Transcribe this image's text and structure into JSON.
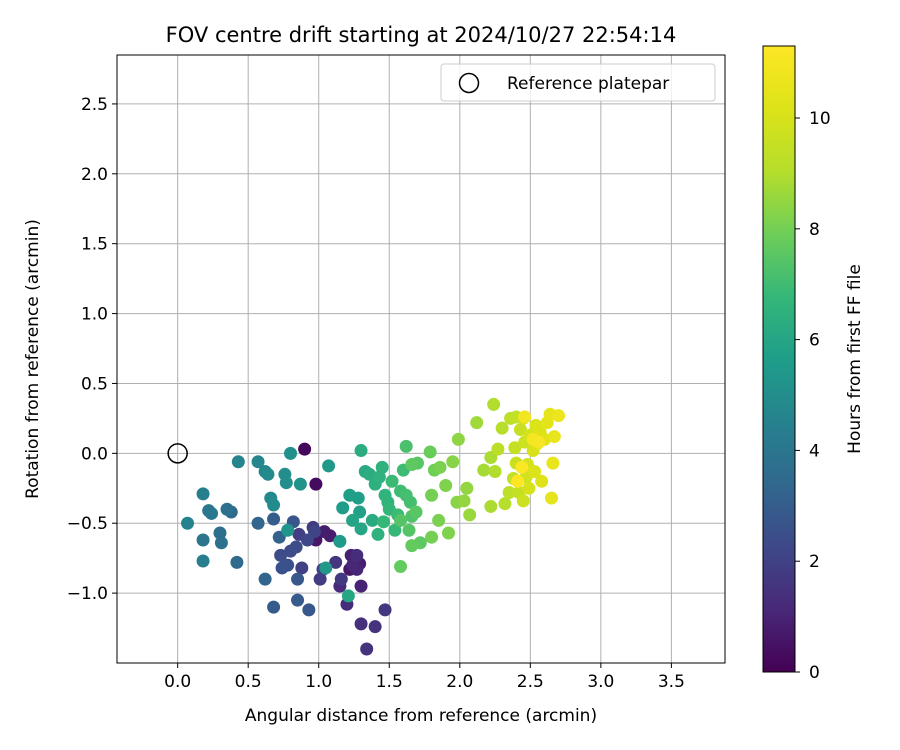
{
  "chart_data": {
    "type": "scatter",
    "title": "FOV centre drift starting at 2024/10/27 22:54:14",
    "xlabel": "Angular distance from reference (arcmin)",
    "ylabel": "Rotation from reference (arcmin)",
    "xlim": [
      -0.43,
      3.88
    ],
    "ylim": [
      -1.5,
      2.85
    ],
    "xticks": [
      0.0,
      0.5,
      1.0,
      1.5,
      2.0,
      2.5,
      3.0,
      3.5
    ],
    "xtick_labels": [
      "0.0",
      "0.5",
      "1.0",
      "1.5",
      "2.0",
      "2.5",
      "3.0",
      "3.5"
    ],
    "yticks": [
      -1.0,
      -0.5,
      0.0,
      0.5,
      1.0,
      1.5,
      2.0,
      2.5
    ],
    "ytick_labels": [
      "−1.0",
      "−0.5",
      "0.0",
      "0.5",
      "1.0",
      "1.5",
      "2.0",
      "2.5"
    ],
    "grid": true,
    "legend_position": "top-right",
    "legend_label": "Reference platepar",
    "reference_point": [
      0.0,
      0.0
    ],
    "colorbar": {
      "label": "Hours from first FF file",
      "min": 0,
      "max": 11.3,
      "ticks": [
        0,
        2,
        4,
        6,
        8,
        10
      ],
      "tick_labels": [
        "0",
        "2",
        "4",
        "6",
        "8",
        "10"
      ],
      "colormap": "viridis"
    },
    "points": [
      [
        0.9,
        0.03,
        0.2
      ],
      [
        0.98,
        -0.22,
        0.3
      ],
      [
        0.98,
        -0.62,
        0.6
      ],
      [
        1.22,
        -0.83,
        0.6
      ],
      [
        1.04,
        -0.56,
        0.8
      ],
      [
        1.08,
        -0.59,
        0.8
      ],
      [
        1.29,
        -0.79,
        0.8
      ],
      [
        1.23,
        -0.73,
        0.9
      ],
      [
        1.3,
        -0.95,
        1.0
      ],
      [
        1.27,
        -0.83,
        1.0
      ],
      [
        1.24,
        -0.8,
        1.1
      ],
      [
        1.15,
        -0.95,
        1.2
      ],
      [
        1.2,
        -1.08,
        1.3
      ],
      [
        1.27,
        -0.73,
        1.3
      ],
      [
        1.3,
        -1.22,
        1.4
      ],
      [
        1.34,
        -1.4,
        1.5
      ],
      [
        1.4,
        -1.24,
        1.5
      ],
      [
        1.47,
        -1.12,
        1.6
      ],
      [
        1.12,
        -0.78,
        1.6
      ],
      [
        1.16,
        -0.9,
        1.7
      ],
      [
        0.96,
        -0.53,
        1.7
      ],
      [
        1.01,
        -0.9,
        1.8
      ],
      [
        0.86,
        -0.58,
        1.9
      ],
      [
        0.88,
        -0.82,
        2.0
      ],
      [
        1.03,
        -0.83,
        2.0
      ],
      [
        0.97,
        -0.56,
        2.1
      ],
      [
        0.92,
        -0.62,
        2.2
      ],
      [
        0.8,
        -0.7,
        2.3
      ],
      [
        0.73,
        -0.73,
        2.4
      ],
      [
        0.84,
        -0.67,
        2.4
      ],
      [
        0.78,
        -0.8,
        2.5
      ],
      [
        0.74,
        -0.82,
        2.6
      ],
      [
        0.82,
        -0.49,
        2.7
      ],
      [
        0.85,
        -0.9,
        2.8
      ],
      [
        0.93,
        -1.12,
        2.8
      ],
      [
        0.85,
        -1.05,
        2.9
      ],
      [
        0.68,
        -1.1,
        3.0
      ],
      [
        0.68,
        -0.47,
        3.0
      ],
      [
        0.72,
        -0.6,
        3.2
      ],
      [
        0.62,
        -0.9,
        3.3
      ],
      [
        0.57,
        -0.5,
        3.3
      ],
      [
        0.42,
        -0.78,
        3.5
      ],
      [
        0.38,
        -0.42,
        3.5
      ],
      [
        0.3,
        -0.57,
        3.7
      ],
      [
        0.31,
        -0.64,
        3.8
      ],
      [
        0.35,
        -0.4,
        3.8
      ],
      [
        0.22,
        -0.41,
        4.0
      ],
      [
        0.18,
        -0.62,
        4.0
      ],
      [
        0.24,
        -0.43,
        4.1
      ],
      [
        0.18,
        -0.77,
        4.3
      ],
      [
        0.18,
        -0.29,
        4.4
      ],
      [
        0.07,
        -0.5,
        4.5
      ],
      [
        0.43,
        -0.06,
        4.6
      ],
      [
        0.57,
        -0.06,
        4.7
      ],
      [
        0.62,
        -0.13,
        4.7
      ],
      [
        0.66,
        -0.32,
        4.8
      ],
      [
        0.68,
        -0.37,
        4.9
      ],
      [
        0.64,
        -0.15,
        4.9
      ],
      [
        0.76,
        -0.15,
        5.0
      ],
      [
        0.77,
        -0.21,
        5.0
      ],
      [
        0.8,
        0.0,
        5.1
      ],
      [
        0.87,
        -0.22,
        5.2
      ],
      [
        0.78,
        -0.55,
        5.3
      ],
      [
        1.07,
        -0.09,
        5.4
      ],
      [
        1.05,
        -0.82,
        5.4
      ],
      [
        1.15,
        -0.63,
        5.5
      ],
      [
        1.17,
        -0.39,
        5.6
      ],
      [
        1.22,
        -0.3,
        5.7
      ],
      [
        1.28,
        -0.32,
        5.7
      ],
      [
        1.29,
        -0.42,
        5.8
      ],
      [
        1.24,
        -0.48,
        5.9
      ],
      [
        1.3,
        -0.54,
        6.0
      ],
      [
        1.21,
        -1.02,
        6.0
      ],
      [
        1.33,
        -0.13,
        6.1
      ],
      [
        1.38,
        -0.48,
        6.2
      ],
      [
        1.3,
        0.02,
        6.3
      ],
      [
        1.36,
        -0.15,
        6.3
      ],
      [
        1.4,
        -0.22,
        6.4
      ],
      [
        1.43,
        -0.17,
        6.5
      ],
      [
        1.45,
        -0.1,
        6.5
      ],
      [
        1.42,
        -0.58,
        6.5
      ],
      [
        1.47,
        -0.3,
        6.6
      ],
      [
        1.49,
        -0.35,
        6.6
      ],
      [
        1.5,
        -0.4,
        6.7
      ],
      [
        1.46,
        -0.49,
        6.8
      ],
      [
        1.54,
        -0.55,
        6.8
      ],
      [
        1.52,
        -0.2,
        6.9
      ],
      [
        1.56,
        -0.44,
        6.9
      ],
      [
        1.58,
        -0.27,
        7.0
      ],
      [
        1.6,
        -0.12,
        7.0
      ],
      [
        1.62,
        -0.3,
        7.1
      ],
      [
        1.65,
        -0.35,
        7.1
      ],
      [
        1.62,
        0.05,
        7.2
      ],
      [
        1.66,
        -0.45,
        7.3
      ],
      [
        1.58,
        -0.48,
        7.4
      ],
      [
        1.64,
        -0.55,
        7.4
      ],
      [
        1.69,
        -0.42,
        7.5
      ],
      [
        1.7,
        -0.07,
        7.5
      ],
      [
        1.66,
        -0.08,
        7.6
      ],
      [
        1.72,
        -0.64,
        7.6
      ],
      [
        1.66,
        -0.66,
        7.7
      ],
      [
        1.58,
        -0.81,
        7.7
      ],
      [
        1.79,
        0.01,
        7.8
      ],
      [
        1.82,
        -0.12,
        7.9
      ],
      [
        1.8,
        -0.3,
        8.0
      ],
      [
        1.8,
        -0.6,
        8.0
      ],
      [
        1.85,
        -0.48,
        8.1
      ],
      [
        1.86,
        -0.1,
        8.1
      ],
      [
        1.9,
        -0.23,
        8.2
      ],
      [
        1.92,
        -0.57,
        8.2
      ],
      [
        1.95,
        -0.06,
        8.3
      ],
      [
        1.98,
        -0.35,
        8.3
      ],
      [
        1.99,
        0.1,
        8.4
      ],
      [
        2.03,
        -0.34,
        8.5
      ],
      [
        2.05,
        -0.25,
        8.5
      ],
      [
        2.07,
        -0.44,
        8.6
      ],
      [
        2.12,
        0.22,
        8.7
      ],
      [
        2.17,
        -0.12,
        8.8
      ],
      [
        2.22,
        -0.03,
        8.9
      ],
      [
        2.22,
        -0.38,
        8.9
      ],
      [
        2.24,
        0.35,
        9.0
      ],
      [
        2.25,
        -0.13,
        9.0
      ],
      [
        2.3,
        0.18,
        9.1
      ],
      [
        2.32,
        -0.36,
        9.1
      ],
      [
        2.27,
        0.03,
        9.2
      ],
      [
        2.35,
        -0.28,
        9.3
      ],
      [
        2.36,
        0.25,
        9.3
      ],
      [
        2.38,
        -0.18,
        9.4
      ],
      [
        2.4,
        0.26,
        9.4
      ],
      [
        2.39,
        0.04,
        9.5
      ],
      [
        2.42,
        -0.28,
        9.5
      ],
      [
        2.43,
        0.17,
        9.6
      ],
      [
        2.4,
        -0.07,
        9.6
      ],
      [
        2.45,
        -0.34,
        9.7
      ],
      [
        2.46,
        0.08,
        9.7
      ],
      [
        2.47,
        -0.17,
        9.8
      ],
      [
        2.45,
        0.25,
        9.8
      ],
      [
        2.48,
        -0.08,
        9.9
      ],
      [
        2.5,
        0.13,
        9.9
      ],
      [
        2.49,
        -0.25,
        10.0
      ],
      [
        2.52,
        0.02,
        10.0
      ],
      [
        2.54,
        0.2,
        10.1
      ],
      [
        2.53,
        -0.13,
        10.1
      ],
      [
        2.55,
        0.07,
        10.2
      ],
      [
        2.57,
        0.15,
        10.2
      ],
      [
        2.58,
        -0.2,
        10.3
      ],
      [
        2.6,
        0.1,
        10.3
      ],
      [
        2.62,
        0.22,
        10.4
      ],
      [
        2.64,
        0.28,
        10.5
      ],
      [
        2.65,
        -0.32,
        10.5
      ],
      [
        2.66,
        -0.07,
        10.6
      ],
      [
        2.67,
        0.12,
        10.6
      ],
      [
        2.7,
        0.27,
        10.8
      ],
      [
        2.46,
        0.26,
        10.9
      ],
      [
        2.52,
        0.1,
        11.0
      ],
      [
        2.56,
        0.08,
        11.1
      ],
      [
        2.44,
        -0.1,
        11.2
      ],
      [
        2.41,
        -0.2,
        11.3
      ]
    ]
  }
}
